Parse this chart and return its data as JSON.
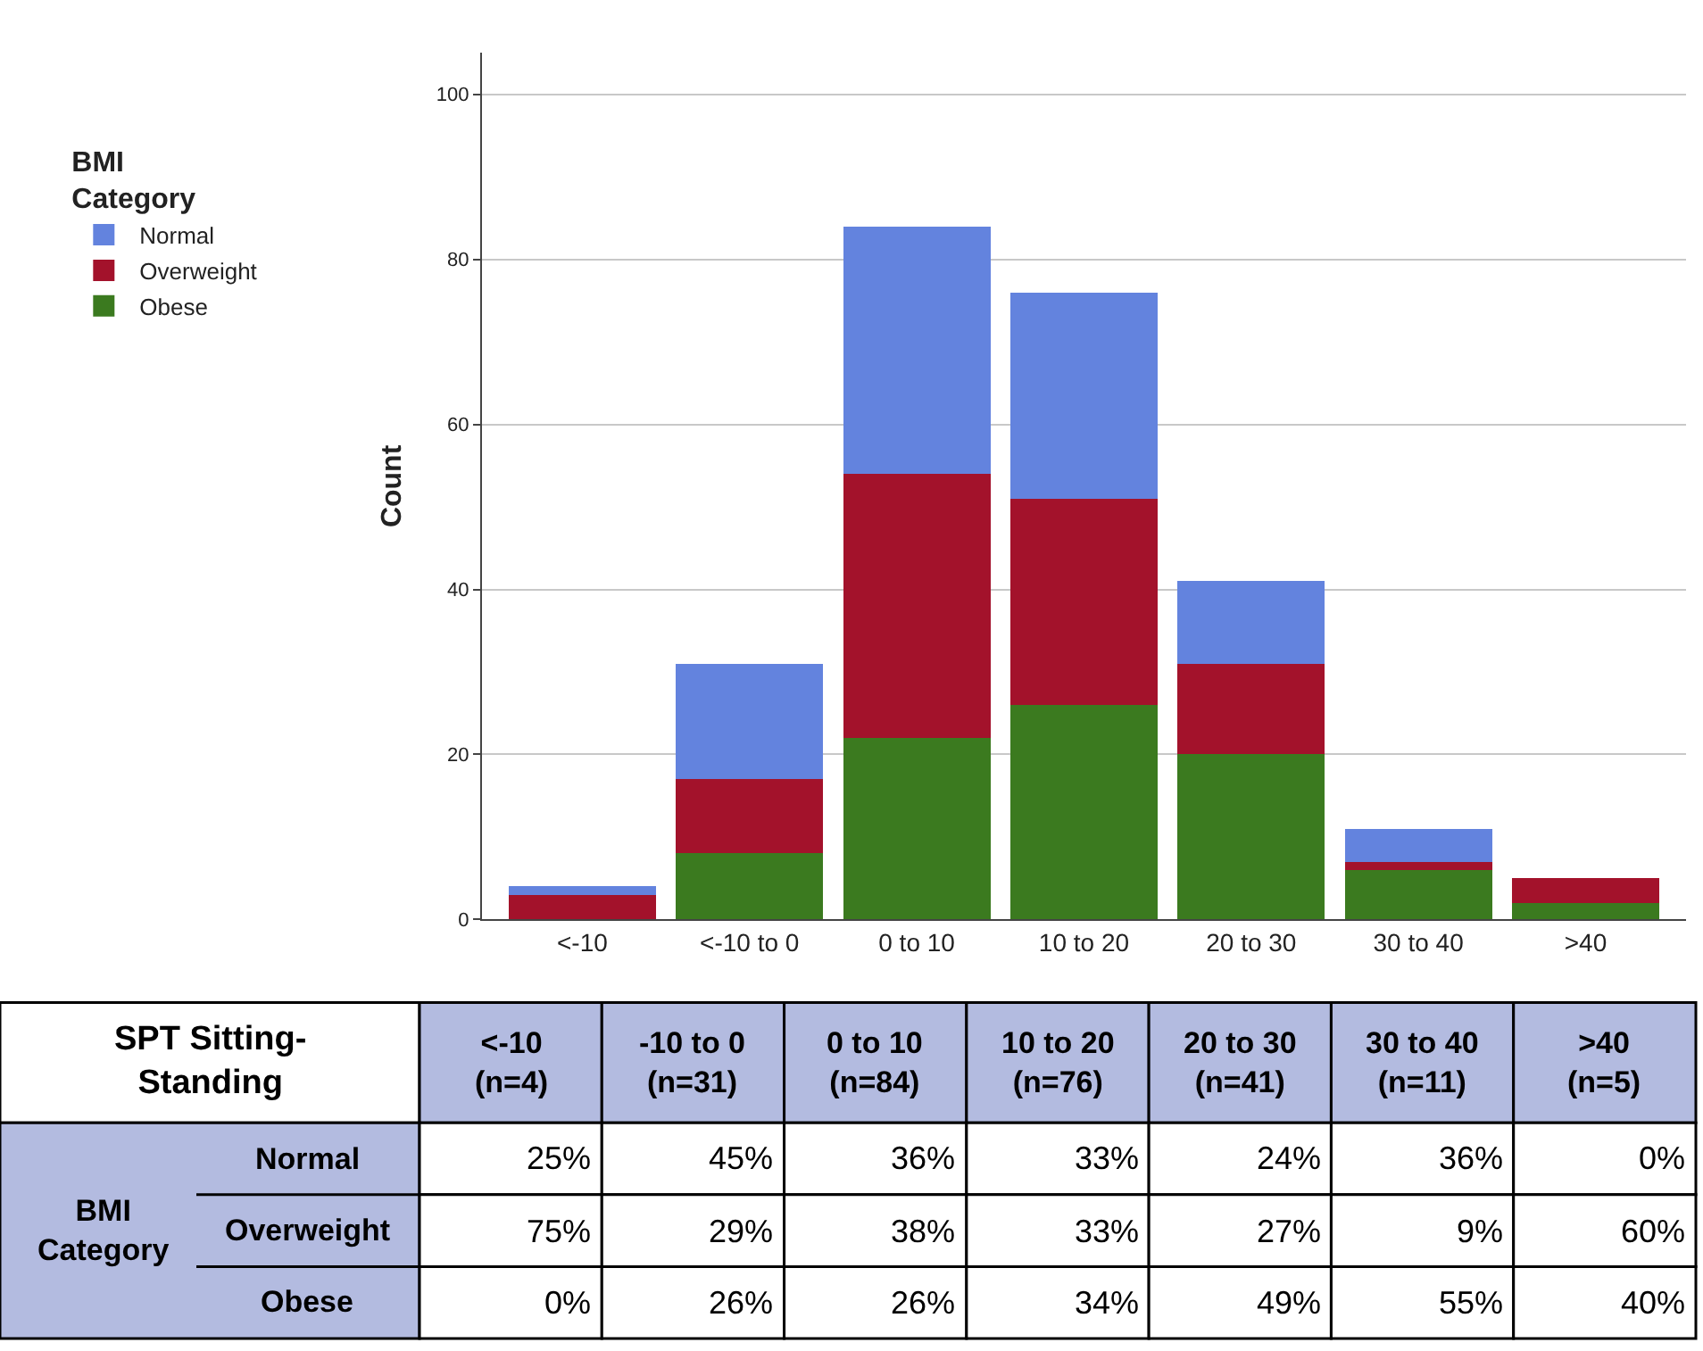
{
  "chart_data": {
    "type": "bar",
    "stacked": true,
    "categories": [
      "<-10",
      "<-10 to 0",
      "0 to 10",
      "10 to 20",
      "20 to 30",
      "30 to 40",
      ">40"
    ],
    "ylabel": "Count",
    "legend_title": "BMI\nCategory",
    "legend": "top left",
    "ylim": [
      0,
      105
    ],
    "yticks": [
      0,
      20,
      40,
      60,
      80,
      100
    ],
    "grid": "y",
    "series": [
      {
        "name": "Obese",
        "color": "#3b7a1f",
        "values": [
          0,
          8,
          22,
          26,
          20,
          6,
          2
        ]
      },
      {
        "name": "Overweight",
        "color": "#a3122b",
        "values": [
          3,
          9,
          32,
          25,
          11,
          1,
          3
        ]
      },
      {
        "name": "Normal",
        "color": "#6383de",
        "values": [
          1,
          14,
          30,
          25,
          10,
          4,
          0
        ]
      }
    ],
    "annotations": [
      "SPT Sitting-\nStanding",
      "BMI\nCategory",
      "<-10\n(n=4)",
      "-10 to 0\n(n=31)",
      "0 to 10\n(n=84)",
      "10 to 20\n(n=76)",
      "20 to 30\n(n=41)",
      "30 to 40\n(n=11)",
      ">40\n(n=5)",
      "25%",
      "45%",
      "36%",
      "33%",
      "24%",
      "36%",
      "0%",
      "75%",
      "29%",
      "38%",
      "33%",
      "27%",
      "9%",
      "60%",
      "0%",
      "26%",
      "26%",
      "34%",
      "49%",
      "55%",
      "40%"
    ]
  }
}
